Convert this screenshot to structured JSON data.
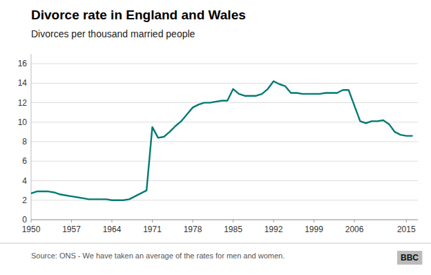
{
  "chart_data": {
    "type": "line",
    "title": "Divorce rate in England and Wales",
    "subtitle": "Divorces per thousand married people",
    "source": "Source: ONS - We have taken an average of the rates for men and women.",
    "annotations": [
      "BBC"
    ],
    "color": "#007a73",
    "grid": true,
    "xlim": [
      1950,
      2017
    ],
    "ylim": [
      0,
      17
    ],
    "xticks": [
      1950,
      1957,
      1964,
      1971,
      1978,
      1985,
      1992,
      1999,
      2006,
      2015
    ],
    "yticks": [
      0,
      2,
      4,
      6,
      8,
      10,
      12,
      14,
      16
    ],
    "x": [
      1950,
      1951,
      1952,
      1953,
      1954,
      1955,
      1956,
      1957,
      1958,
      1959,
      1960,
      1961,
      1962,
      1963,
      1964,
      1965,
      1966,
      1967,
      1968,
      1969,
      1970,
      1971,
      1972,
      1973,
      1974,
      1975,
      1976,
      1977,
      1978,
      1979,
      1980,
      1981,
      1982,
      1983,
      1984,
      1985,
      1986,
      1987,
      1988,
      1989,
      1990,
      1991,
      1992,
      1993,
      1994,
      1995,
      1996,
      1997,
      1998,
      1999,
      2000,
      2001,
      2002,
      2003,
      2004,
      2005,
      2006,
      2007,
      2008,
      2009,
      2010,
      2011,
      2012,
      2013,
      2014,
      2015,
      2016
    ],
    "values": [
      2.7,
      2.9,
      2.9,
      2.9,
      2.8,
      2.6,
      2.5,
      2.4,
      2.3,
      2.2,
      2.1,
      2.1,
      2.1,
      2.1,
      2.0,
      2.0,
      2.0,
      2.1,
      2.4,
      2.7,
      3.0,
      9.5,
      8.4,
      8.5,
      9.0,
      9.6,
      10.1,
      10.8,
      11.5,
      11.8,
      12.0,
      12.0,
      12.1,
      12.2,
      12.2,
      13.4,
      12.9,
      12.7,
      12.7,
      12.7,
      12.9,
      13.4,
      14.2,
      13.9,
      13.7,
      13.0,
      13.0,
      12.9,
      12.9,
      12.9,
      12.9,
      13.0,
      13.0,
      13.0,
      13.3,
      13.3,
      11.7,
      10.1,
      9.9,
      10.1,
      10.1,
      10.2,
      9.8,
      9.0,
      8.7,
      8.6,
      8.6
    ]
  }
}
